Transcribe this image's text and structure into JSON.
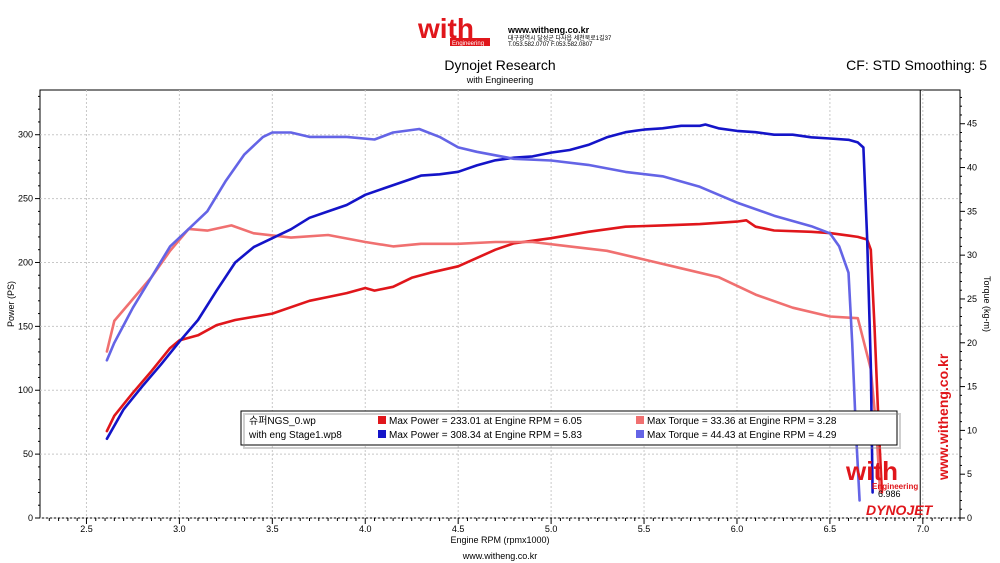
{
  "header": {
    "logo_text": "with",
    "logo_subtext": "Engineering",
    "logo_url": "www.witheng.co.kr",
    "logo_address_line1": "대구광역시 달성군 다사읍 세천북로1길37",
    "logo_address_line2": "T.053.582.0707 F.053.582.0807",
    "title": "Dynojet Research",
    "subtitle": "with Engineering",
    "cf_label": "CF: STD Smoothing: 5"
  },
  "footer": {
    "url": "www.witheng.co.kr"
  },
  "watermark": {
    "vertical_url": "www.witheng.co.kr",
    "logo_text": "with",
    "logo_subtext": "Engineering",
    "rpm_readout": "6.986",
    "dynojet_text": "DYNOJET"
  },
  "legend": {
    "rows": [
      {
        "file": "슈퍼NGS_0.wp",
        "power_text": "Max Power = 233.01 at Engine RPM = 6.05",
        "torque_text": "Max Torque = 33.36 at Engine RPM = 3.28",
        "power_color": "#e0161b",
        "torque_color": "#f07070"
      },
      {
        "file": "with eng Stage1.wp8",
        "power_text": "Max Power = 308.34 at Engine RPM = 5.83",
        "torque_text": "Max Torque = 44.43 at Engine RPM = 4.29",
        "power_color": "#1414c8",
        "torque_color": "#6464e6"
      }
    ]
  },
  "chart_data": {
    "type": "line",
    "xlabel": "Engine RPM (rpmx1000)",
    "ylabel": "Power (PS)",
    "y2label": "Torque (kg-m)",
    "xlim": [
      2.25,
      7.2
    ],
    "ylim": [
      0,
      335
    ],
    "y2lim": [
      0,
      48.85
    ],
    "xticks": [
      2.5,
      3.0,
      3.5,
      4.0,
      4.5,
      5.0,
      5.5,
      6.0,
      6.5,
      7.0
    ],
    "xtick_labels": [
      "2.5",
      "3.0",
      "3.5",
      "4.0",
      "4.5",
      "5.0",
      "5.5",
      "6.0",
      "6.5",
      "7.0"
    ],
    "yticks": [
      0,
      50,
      100,
      150,
      200,
      250,
      300
    ],
    "ytick_labels": [
      "0",
      "50",
      "100",
      "150",
      "200",
      "250",
      "300"
    ],
    "y2ticks": [
      0,
      5,
      10,
      15,
      20,
      25,
      30,
      35,
      40,
      45
    ],
    "y2tick_labels": [
      "0",
      "5",
      "10",
      "15",
      "20",
      "25",
      "30",
      "35",
      "40",
      "45"
    ],
    "grid": true,
    "cursor_rpm": 6.986,
    "series": [
      {
        "name": "슈퍼NGS_0.wp",
        "axis": "power",
        "color": "#e0161b",
        "x": [
          2.61,
          2.65,
          2.75,
          2.85,
          2.95,
          3.0,
          3.1,
          3.2,
          3.3,
          3.5,
          3.7,
          3.8,
          3.9,
          4.0,
          4.05,
          4.15,
          4.25,
          4.35,
          4.5,
          4.7,
          4.8,
          5.0,
          5.2,
          5.4,
          5.6,
          5.8,
          6.0,
          6.05,
          6.1,
          6.2,
          6.4,
          6.5,
          6.6,
          6.65,
          6.7,
          6.72,
          6.74,
          6.76,
          6.78
        ],
        "y": [
          68,
          80,
          98,
          115,
          133,
          139,
          143,
          151,
          155,
          160,
          170,
          173,
          176,
          180,
          178,
          181,
          188,
          192,
          197,
          210,
          215,
          219,
          224,
          228,
          229,
          230,
          232,
          233,
          228,
          225,
          224,
          223,
          221,
          220,
          218,
          210,
          150,
          80,
          20
        ]
      },
      {
        "name": "슈퍼NGS_0.wp",
        "axis": "torque",
        "color": "#f07070",
        "x": [
          2.61,
          2.65,
          2.75,
          2.85,
          2.95,
          3.05,
          3.15,
          3.28,
          3.4,
          3.6,
          3.8,
          4.0,
          4.15,
          4.3,
          4.5,
          4.7,
          4.9,
          5.1,
          5.3,
          5.5,
          5.7,
          5.9,
          6.1,
          6.3,
          6.5,
          6.65,
          6.72,
          6.75,
          6.77
        ],
        "y": [
          19,
          22.5,
          25,
          27.5,
          30.5,
          33,
          32.8,
          33.4,
          32.5,
          32,
          32.3,
          31.5,
          31,
          31.3,
          31.3,
          31.5,
          31.5,
          31,
          30.5,
          29.5,
          28.5,
          27.5,
          25.5,
          24,
          23,
          22.8,
          17,
          10,
          3
        ]
      },
      {
        "name": "with eng Stage1.wp8",
        "axis": "power",
        "color": "#1414c8",
        "x": [
          2.61,
          2.7,
          2.8,
          2.9,
          3.0,
          3.1,
          3.2,
          3.3,
          3.4,
          3.5,
          3.6,
          3.7,
          3.8,
          3.9,
          4.0,
          4.1,
          4.2,
          4.3,
          4.4,
          4.5,
          4.6,
          4.7,
          4.8,
          4.9,
          5.0,
          5.1,
          5.2,
          5.3,
          5.4,
          5.5,
          5.6,
          5.7,
          5.8,
          5.83,
          5.9,
          6.0,
          6.1,
          6.2,
          6.3,
          6.4,
          6.5,
          6.6,
          6.65,
          6.68,
          6.7,
          6.72,
          6.73
        ],
        "y": [
          62,
          85,
          103,
          120,
          138,
          155,
          178,
          200,
          212,
          219,
          226,
          235,
          240,
          245,
          253,
          258,
          263,
          268,
          269,
          271,
          276,
          280,
          282,
          283,
          286,
          288,
          292,
          298,
          302,
          304,
          305,
          307,
          307,
          308,
          305,
          303,
          302,
          300,
          300,
          298,
          297,
          296,
          294,
          290,
          220,
          120,
          20
        ]
      },
      {
        "name": "with eng Stage1.wp8",
        "axis": "torque",
        "color": "#6464e6",
        "x": [
          2.61,
          2.65,
          2.75,
          2.85,
          2.95,
          3.05,
          3.15,
          3.25,
          3.35,
          3.45,
          3.5,
          3.6,
          3.7,
          3.9,
          4.05,
          4.15,
          4.29,
          4.4,
          4.5,
          4.6,
          4.8,
          5.0,
          5.2,
          5.4,
          5.6,
          5.8,
          6.0,
          6.2,
          6.4,
          6.5,
          6.55,
          6.6,
          6.62,
          6.64,
          6.66
        ],
        "y": [
          18,
          20,
          24,
          27.5,
          31,
          33,
          35,
          38.5,
          41.5,
          43.5,
          44,
          44,
          43.5,
          43.5,
          43.2,
          44,
          44.4,
          43.5,
          42.3,
          41.8,
          41,
          40.8,
          40.3,
          39.5,
          39,
          37.8,
          36,
          34.5,
          33.3,
          32.5,
          31,
          28,
          20,
          10,
          2
        ]
      }
    ]
  }
}
